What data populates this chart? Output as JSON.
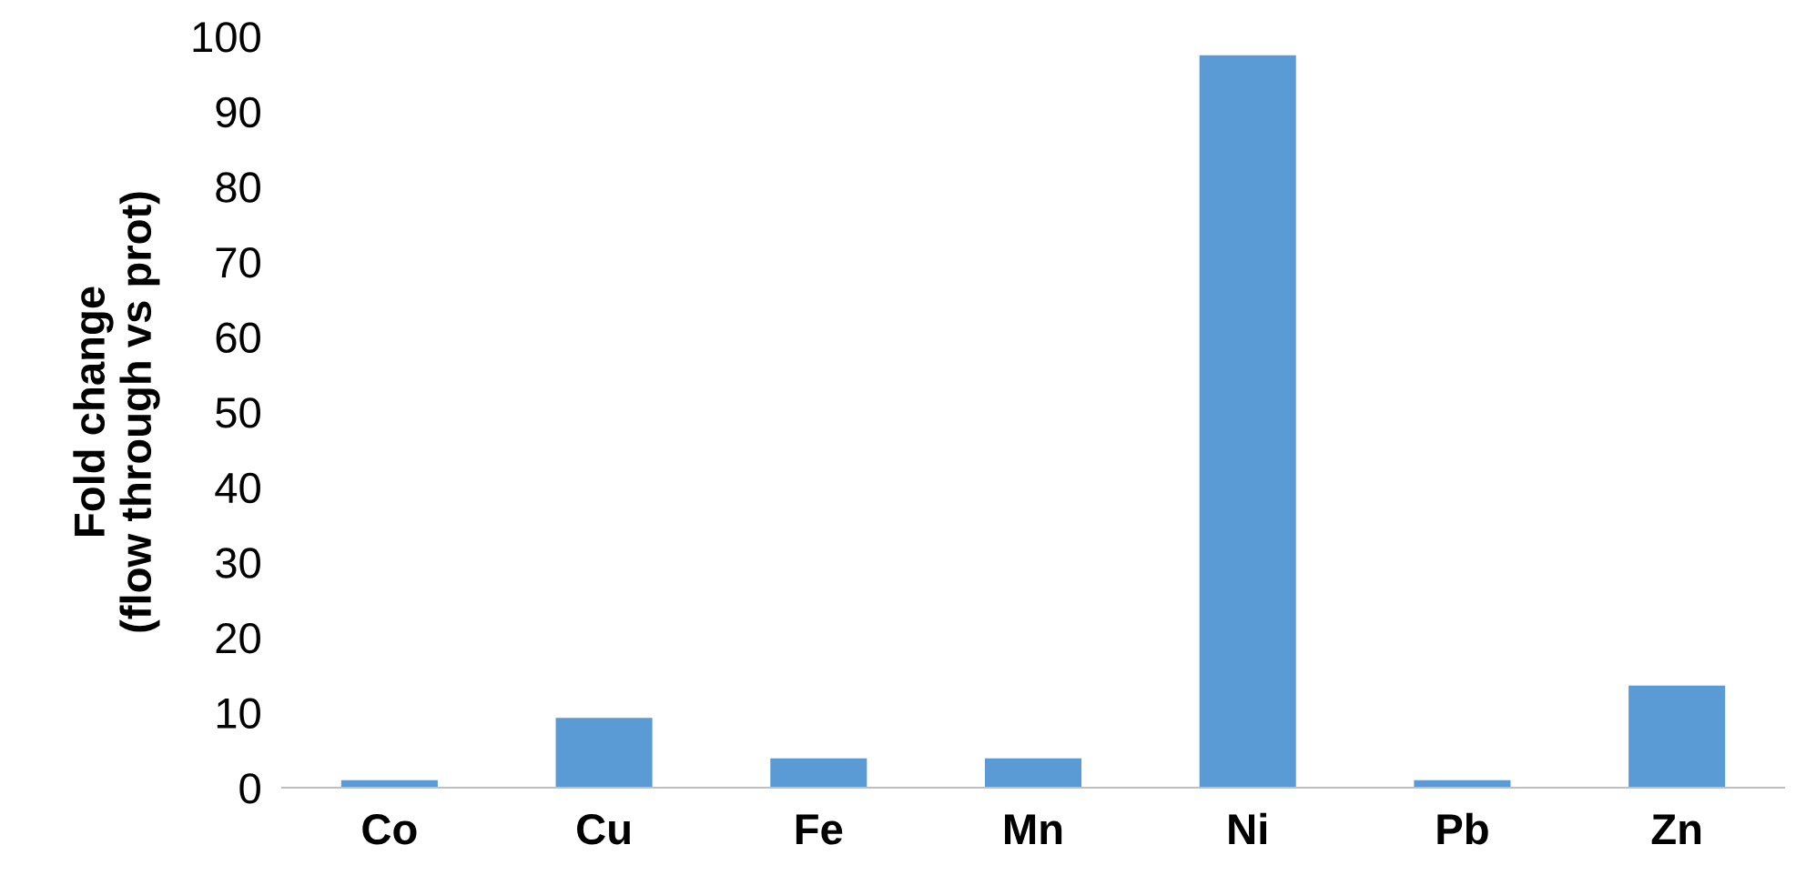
{
  "chart_data": {
    "type": "bar",
    "ylabel": "Fold change\n(flow through vs prot)",
    "categories": [
      "Co",
      "Cu",
      "Fe",
      "Mn",
      "Ni",
      "Pb",
      "Zn"
    ],
    "values": [
      1,
      9.3,
      3.9,
      3.9,
      97.5,
      1,
      13.6
    ],
    "color": "#5b9bd5",
    "ylim": [
      0,
      100
    ],
    "yticks": [
      0,
      10,
      20,
      30,
      40,
      50,
      60,
      70,
      80,
      90,
      100
    ],
    "grid": false
  }
}
